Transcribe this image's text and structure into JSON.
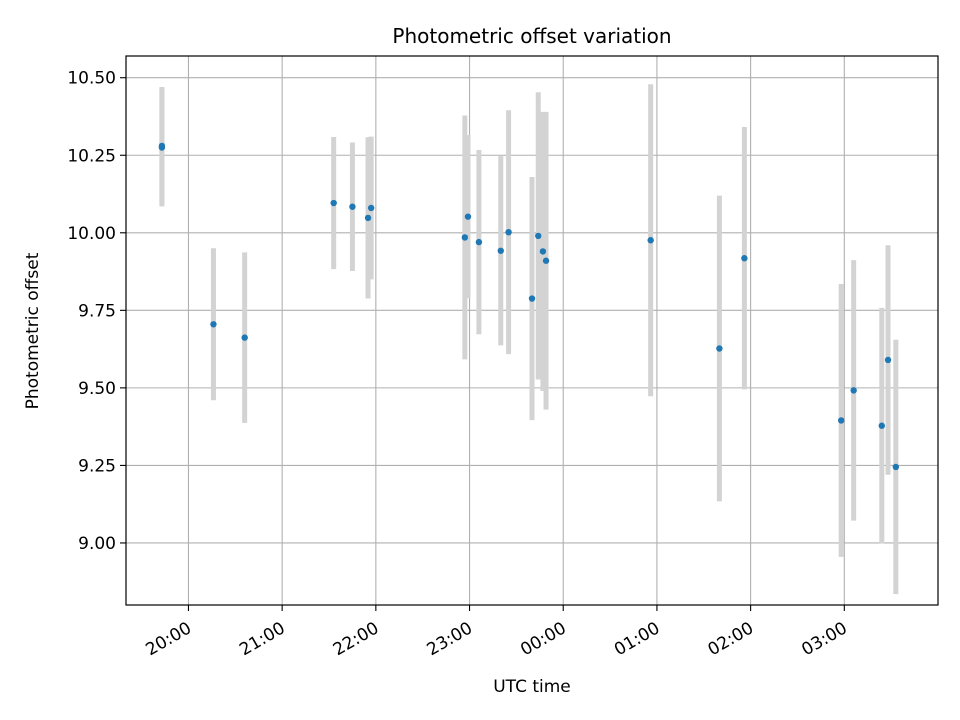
{
  "chart_data": {
    "type": "scatter",
    "title": "Photometric offset variation",
    "xlabel": "UTC time",
    "ylabel": "Photometric offset",
    "x_unit": "UTC time",
    "xlim": [
      "19:20",
      "04:00"
    ],
    "ylim": [
      8.8,
      10.57
    ],
    "x_ticks": [
      "20:00",
      "21:00",
      "22:00",
      "23:00",
      "00:00",
      "01:00",
      "02:00",
      "03:00"
    ],
    "x_tick_times": [
      "20:00",
      "21:00",
      "22:00",
      "23:00",
      "24:00",
      "25:00",
      "26:00",
      "27:00"
    ],
    "y_ticks": [
      9.0,
      9.25,
      9.5,
      9.75,
      10.0,
      10.25,
      10.5
    ],
    "y_tick_labels": [
      "9.00",
      "9.25",
      "9.50",
      "9.75",
      "10.00",
      "10.25",
      "10.50"
    ],
    "grid": true,
    "series": [
      {
        "marker_color": "#1f77b4",
        "errorbar_color": "#d3d3d3",
        "points": [
          {
            "x": "19:43",
            "y": 10.28,
            "err": 0.19
          },
          {
            "x": "19:43",
            "y": 10.275,
            "err": 0.19
          },
          {
            "x": "20:16",
            "y": 9.705,
            "err": 0.245
          },
          {
            "x": "20:36",
            "y": 9.662,
            "err": 0.275
          },
          {
            "x": "21:33",
            "y": 10.096,
            "err": 0.213
          },
          {
            "x": "21:45",
            "y": 10.084,
            "err": 0.207
          },
          {
            "x": "21:55",
            "y": 10.048,
            "err": 0.26
          },
          {
            "x": "21:57",
            "y": 10.08,
            "err": 0.23
          },
          {
            "x": "22:57",
            "y": 9.985,
            "err": 0.393
          },
          {
            "x": "22:59",
            "y": 10.052,
            "err": 0.263
          },
          {
            "x": "23:06",
            "y": 9.97,
            "err": 0.297
          },
          {
            "x": "23:20",
            "y": 9.942,
            "err": 0.305
          },
          {
            "x": "23:25",
            "y": 10.002,
            "err": 0.393
          },
          {
            "x": "23:40",
            "y": 9.788,
            "err": 0.392
          },
          {
            "x": "23:44",
            "y": 9.99,
            "err": 0.463
          },
          {
            "x": "23:47",
            "y": 9.94,
            "err": 0.45
          },
          {
            "x": "23:49",
            "y": 9.91,
            "err": 0.48
          },
          {
            "x": "00:56",
            "y": 9.976,
            "err": 0.503
          },
          {
            "x": "01:40",
            "y": 9.627,
            "err": 0.493
          },
          {
            "x": "01:56",
            "y": 9.918,
            "err": 0.423
          },
          {
            "x": "02:58",
            "y": 9.395,
            "err": 0.44
          },
          {
            "x": "03:06",
            "y": 9.492,
            "err": 0.42
          },
          {
            "x": "03:24",
            "y": 9.378,
            "err": 0.38
          },
          {
            "x": "03:28",
            "y": 9.59,
            "err": 0.37
          },
          {
            "x": "03:33",
            "y": 9.245,
            "err": 0.41
          }
        ]
      }
    ]
  }
}
